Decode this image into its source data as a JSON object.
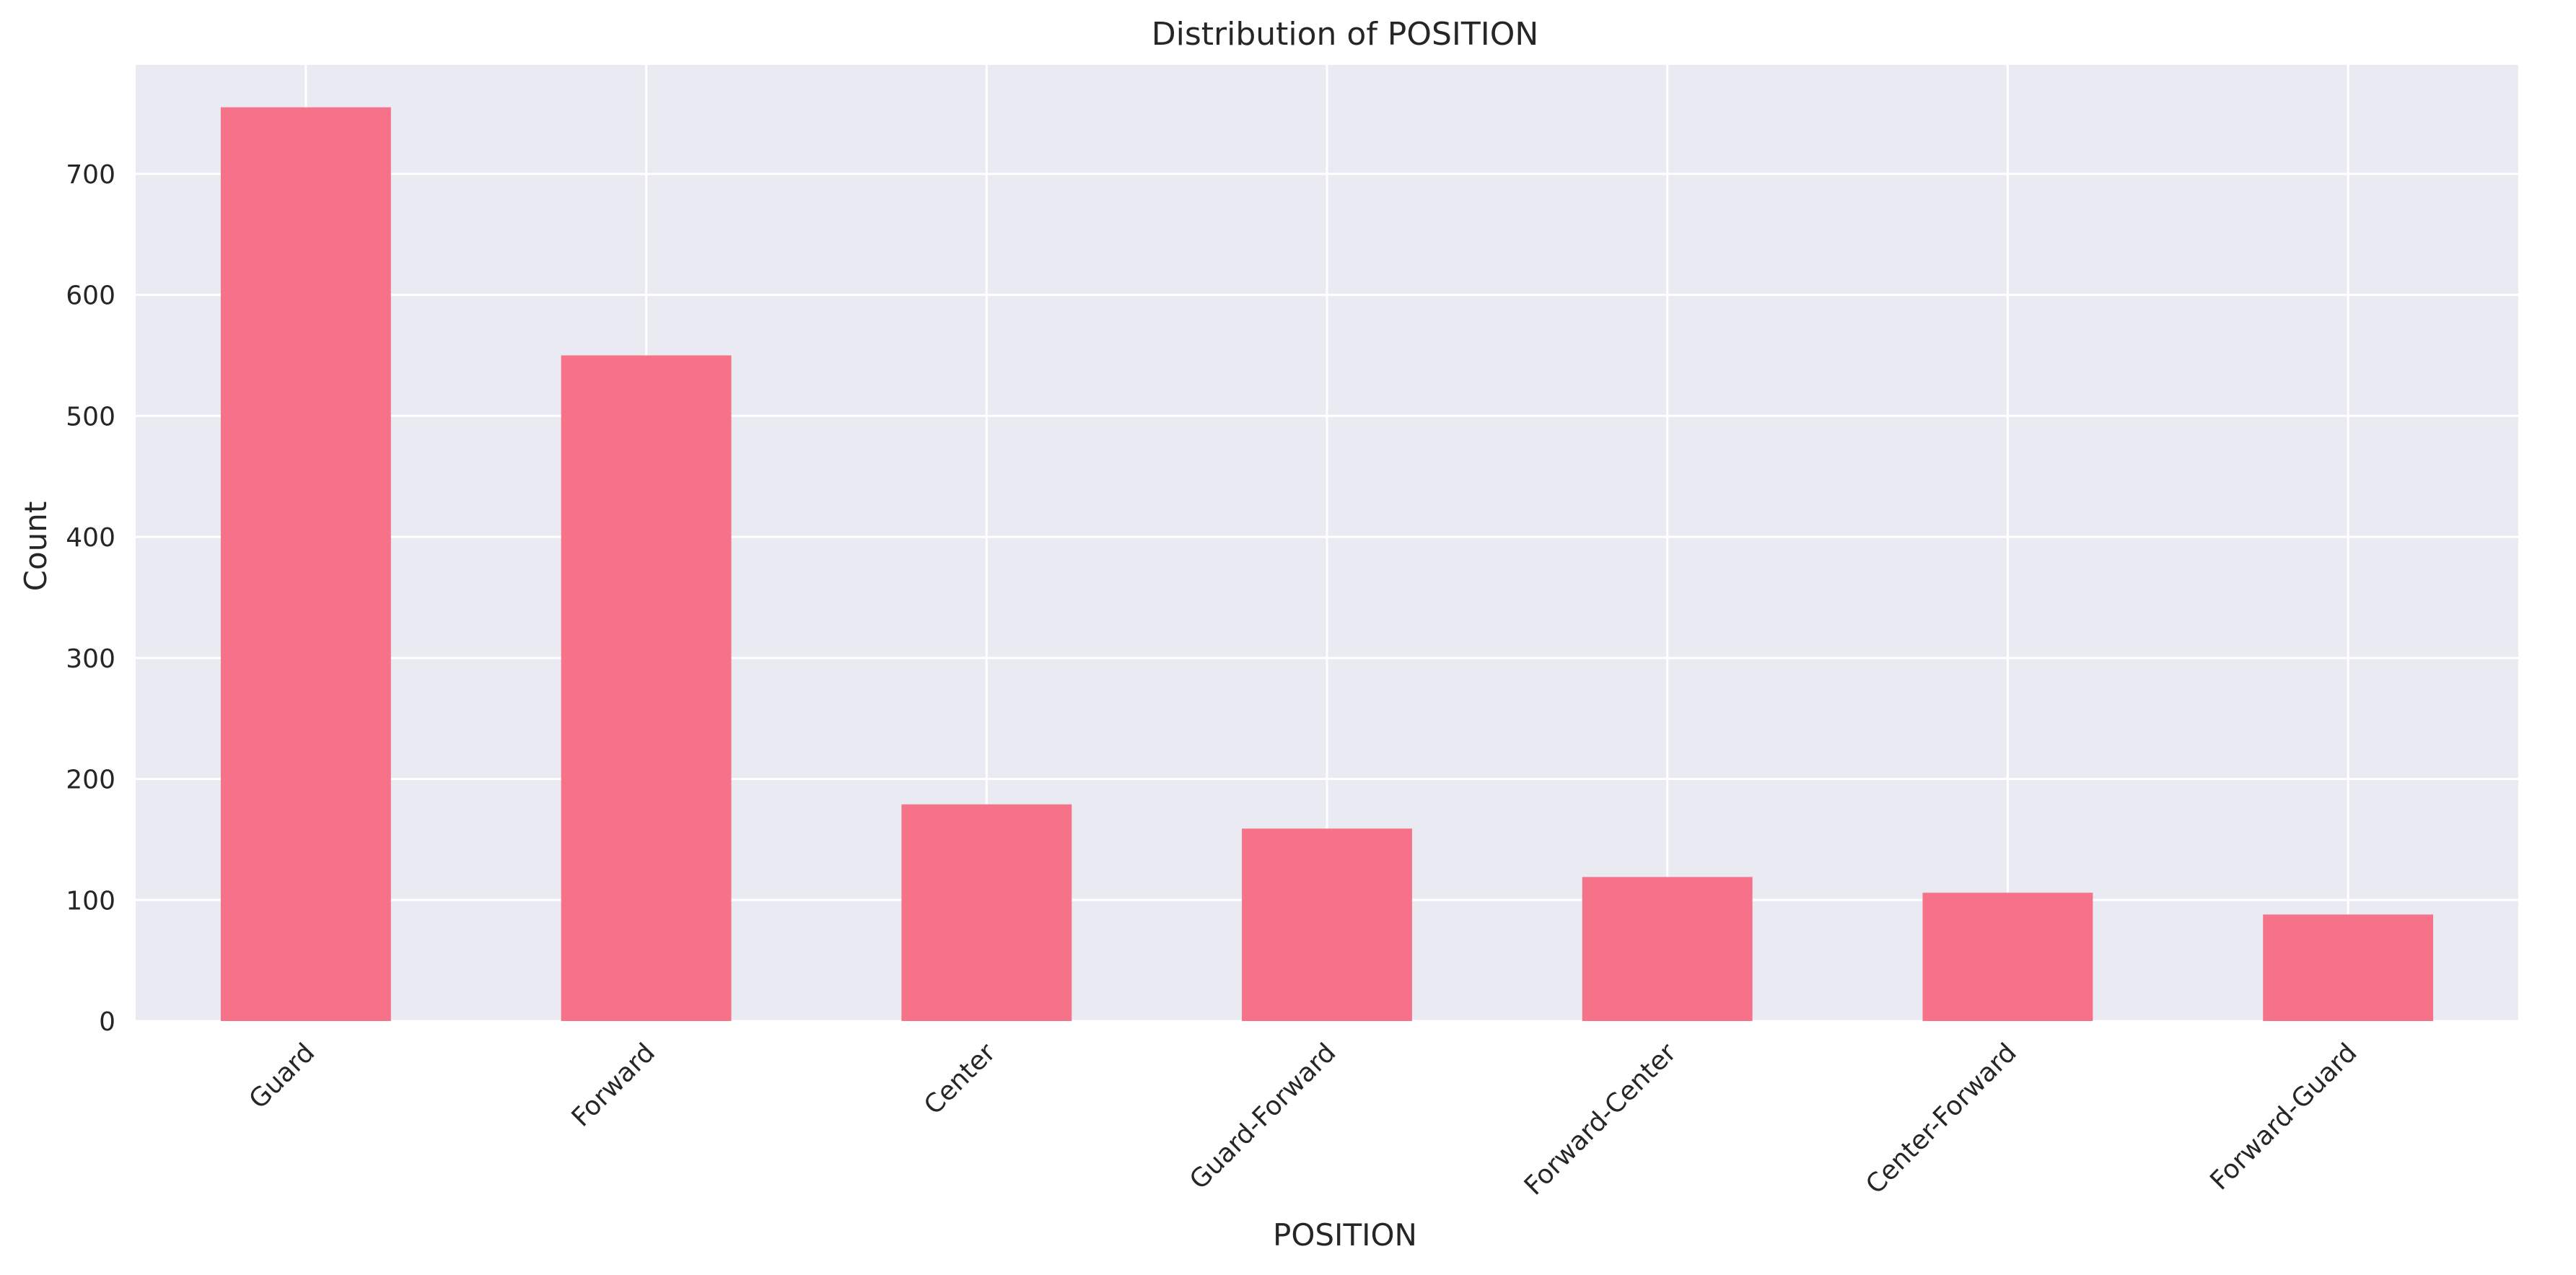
{
  "chart_data": {
    "type": "bar",
    "title": "Distribution of POSITION",
    "xlabel": "POSITION",
    "ylabel": "Count",
    "categories": [
      "Guard",
      "Forward",
      "Center",
      "Guard-Forward",
      "Forward-Center",
      "Center-Forward",
      "Forward-Guard"
    ],
    "values": [
      755,
      550,
      179,
      159,
      119,
      106,
      88
    ],
    "ylim": [
      0,
      790
    ],
    "yticks": [
      0,
      100,
      200,
      300,
      400,
      500,
      600,
      700
    ],
    "grid": true,
    "x_tick_rotation_deg": 45,
    "colors": {
      "bar": "#f67288",
      "plot_background": "#eaeaf2",
      "grid": "#ffffff",
      "text": "#262626"
    }
  }
}
